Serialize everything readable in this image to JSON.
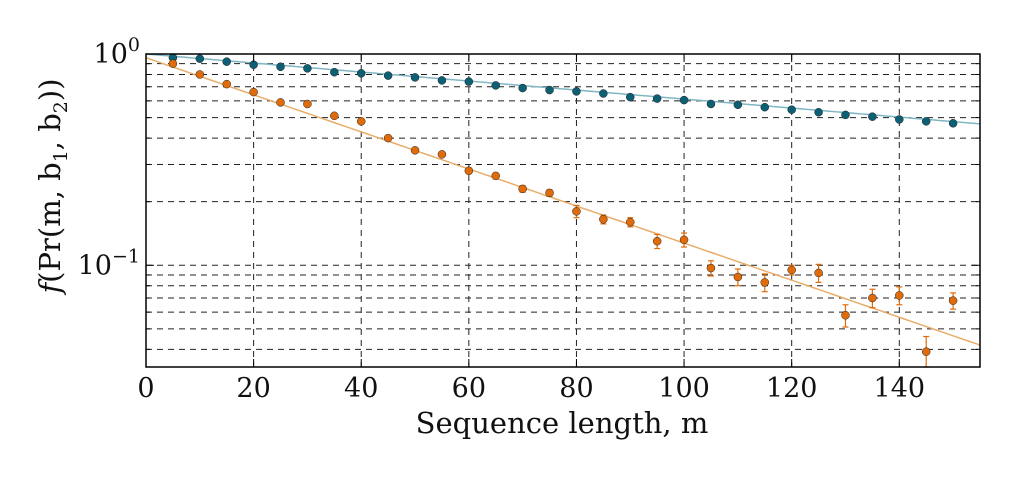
{
  "chart_data": {
    "type": "scatter",
    "title": "",
    "xlabel": "Sequence length,  m",
    "ylabel": "f(Pr(m, b1, b2))",
    "ylabel_parts": {
      "f": "f",
      "open": "(Pr(m, b",
      "sub1": "1",
      "mid": ", b",
      "sub2": "2",
      "close": "))"
    },
    "xscale": "linear",
    "yscale": "log",
    "xlim": [
      0,
      155
    ],
    "ylim": [
      0.033,
      1.0
    ],
    "grid": true,
    "xticks": [
      0,
      20,
      40,
      60,
      80,
      100,
      120,
      140
    ],
    "xtick_labels": [
      "0",
      "20",
      "40",
      "60",
      "80",
      "100",
      "120",
      "140"
    ],
    "yticks_major": [
      {
        "value": 1.0,
        "base": "10",
        "exp": "0"
      },
      {
        "value": 0.1,
        "base": "10",
        "exp": "−1"
      }
    ],
    "yticks_minor": [
      0.04,
      0.05,
      0.06,
      0.07,
      0.08,
      0.09,
      0.2,
      0.3,
      0.4,
      0.5,
      0.6,
      0.7,
      0.8,
      0.9
    ],
    "series": [
      {
        "name": "blue",
        "color": "#0d5f73",
        "fit_color": "#7fb6c4",
        "fit": {
          "a": 1.0,
          "b": 0.9951
        },
        "x": [
          5,
          10,
          15,
          20,
          25,
          30,
          35,
          40,
          45,
          50,
          55,
          60,
          65,
          70,
          75,
          80,
          85,
          90,
          95,
          100,
          105,
          110,
          115,
          120,
          125,
          130,
          135,
          140,
          145,
          150
        ],
        "y": [
          0.96,
          0.95,
          0.92,
          0.89,
          0.87,
          0.855,
          0.82,
          0.81,
          0.79,
          0.775,
          0.75,
          0.74,
          0.71,
          0.69,
          0.675,
          0.665,
          0.65,
          0.625,
          0.615,
          0.605,
          0.58,
          0.575,
          0.56,
          0.545,
          0.53,
          0.515,
          0.505,
          0.49,
          0.48,
          0.47
        ],
        "err": [
          0.005,
          0.005,
          0.005,
          0.005,
          0.005,
          0.005,
          0.006,
          0.006,
          0.006,
          0.006,
          0.006,
          0.006,
          0.006,
          0.006,
          0.006,
          0.006,
          0.006,
          0.006,
          0.006,
          0.006,
          0.007,
          0.007,
          0.007,
          0.007,
          0.007,
          0.007,
          0.007,
          0.007,
          0.007,
          0.007
        ]
      },
      {
        "name": "orange",
        "color": "#e06b0a",
        "fit_color": "#e8ad6a",
        "fit": {
          "a": 0.96,
          "b": 0.98
        },
        "x": [
          5,
          10,
          15,
          20,
          25,
          30,
          35,
          40,
          45,
          50,
          55,
          60,
          65,
          70,
          75,
          80,
          85,
          90,
          95,
          100,
          105,
          110,
          115,
          120,
          125,
          130,
          135,
          140,
          145,
          150
        ],
        "y": [
          0.9,
          0.8,
          0.72,
          0.66,
          0.59,
          0.58,
          0.51,
          0.48,
          0.4,
          0.35,
          0.335,
          0.28,
          0.265,
          0.23,
          0.22,
          0.18,
          0.165,
          0.16,
          0.13,
          0.132,
          0.097,
          0.088,
          0.083,
          0.095,
          0.092,
          0.058,
          0.07,
          0.072,
          0.039,
          0.068
        ],
        "err": [
          0.01,
          0.01,
          0.01,
          0.01,
          0.01,
          0.01,
          0.01,
          0.01,
          0.01,
          0.008,
          0.008,
          0.008,
          0.008,
          0.008,
          0.008,
          0.012,
          0.008,
          0.008,
          0.01,
          0.01,
          0.008,
          0.008,
          0.008,
          0.005,
          0.009,
          0.007,
          0.007,
          0.007,
          0.007,
          0.006
        ]
      }
    ]
  }
}
